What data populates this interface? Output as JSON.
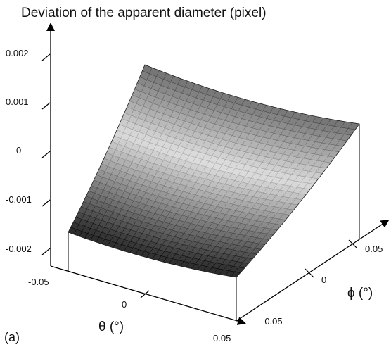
{
  "panel_label": "(a)",
  "chart_data": {
    "type": "surface3d",
    "title": "Deviation of the apparent diameter (pixel)",
    "xlabel": "θ (°)",
    "ylabel": "ϕ (°)",
    "zlabel": "Deviation of the apparent diameter (pixel)",
    "xlim": [
      -0.05,
      0.05
    ],
    "ylim": [
      -0.05,
      0.05
    ],
    "zlim": [
      -0.002,
      0.002
    ],
    "x_ticks": [
      "-0.05",
      "0",
      "0.05"
    ],
    "y_ticks": [
      "-0.05",
      "0",
      "0.05"
    ],
    "z_ticks": [
      "0.002",
      "0.001",
      "0",
      "-0.001",
      "-0.002"
    ],
    "grid_resolution": 30,
    "corners": {
      "theta_min_phi_min": -0.0015,
      "theta_max_phi_min": -0.0015,
      "theta_min_phi_max": 0.0024,
      "theta_max_phi_max": 0.002
    },
    "surface": "deviation ≈ 0.0002 + 0.0019·(ϕ/0.05) + 0.0003·(ϕ/0.05)²; nearly flat in θ, edges slightly raised",
    "shading": "grayscale, dark near ϕ = -0.05 and ϕ = 0.05, light band near ϕ ≈ 0.015"
  }
}
